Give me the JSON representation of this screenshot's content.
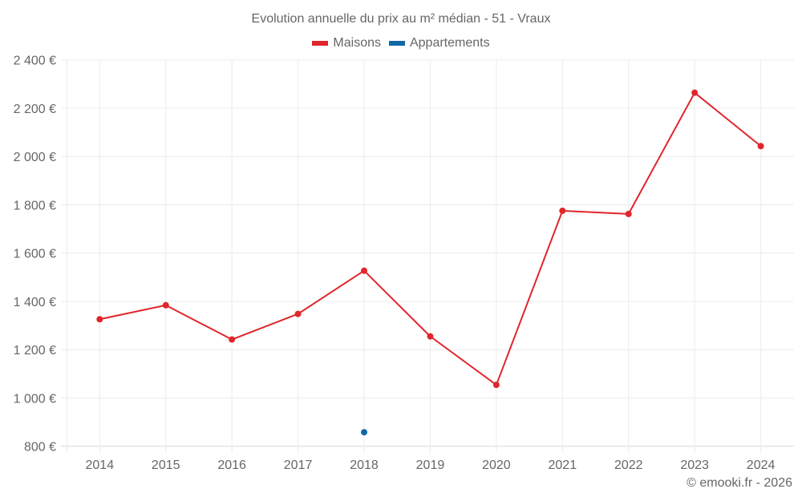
{
  "title": "Evolution annuelle du prix au m² médian - 51 - Vraux",
  "legend": [
    {
      "label": "Maisons",
      "color": "#e0262b"
    },
    {
      "label": "Appartements",
      "color": "#0e68a6"
    }
  ],
  "credit": "© emooki.fr - 2026",
  "chart_data": {
    "type": "line",
    "title": "Evolution annuelle du prix au m² médian - 51 - Vraux",
    "xlabel": "",
    "ylabel": "",
    "categories": [
      "2014",
      "2015",
      "2016",
      "2017",
      "2018",
      "2019",
      "2020",
      "2021",
      "2022",
      "2023",
      "2024"
    ],
    "series": [
      {
        "name": "Maisons",
        "color": "#e0262b",
        "values": [
          1326,
          1384,
          1242,
          1348,
          1527,
          1255,
          1054,
          1775,
          1762,
          2264,
          2043
        ]
      },
      {
        "name": "Appartements",
        "color": "#0e68a6",
        "values": [
          null,
          null,
          null,
          null,
          858,
          null,
          null,
          null,
          null,
          null,
          null
        ]
      }
    ],
    "ylim": [
      800,
      2400
    ],
    "yticks": [
      800,
      1000,
      1200,
      1400,
      1600,
      1800,
      2000,
      2200,
      2400
    ],
    "ytick_labels": [
      "800 €",
      "1 000 €",
      "1 200 €",
      "1 400 €",
      "1 600 €",
      "1 800 €",
      "2 000 €",
      "2 200 €",
      "2 400 €"
    ],
    "grid": true,
    "legend_position": "top"
  }
}
